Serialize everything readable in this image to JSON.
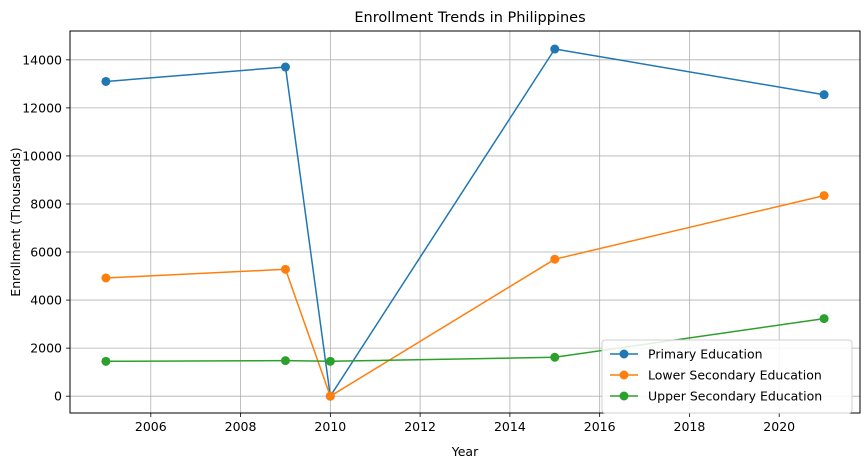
{
  "chart_data": {
    "type": "line",
    "title": "Enrollment Trends in Philippines",
    "xlabel": "Year",
    "ylabel": "Enrollment (Thousands)",
    "x": [
      2005,
      2009,
      2010,
      2015,
      2021
    ],
    "xlim": [
      2004.2,
      2021.8
    ],
    "ylim": [
      -700,
      15200
    ],
    "xticks": [
      2006,
      2008,
      2010,
      2012,
      2014,
      2016,
      2018,
      2020
    ],
    "yticks": [
      0,
      2000,
      4000,
      6000,
      8000,
      10000,
      12000,
      14000
    ],
    "grid": true,
    "legend_position": "lower-right",
    "series": [
      {
        "name": "Primary Education",
        "color": "#1f77b4",
        "values": [
          13100,
          13700,
          0,
          14450,
          12550
        ]
      },
      {
        "name": "Lower Secondary Education",
        "color": "#ff7f0e",
        "values": [
          4920,
          5280,
          0,
          5700,
          8350
        ]
      },
      {
        "name": "Upper Secondary Education",
        "color": "#2ca02c",
        "values": [
          1450,
          1480,
          1450,
          1620,
          3230
        ]
      }
    ]
  }
}
